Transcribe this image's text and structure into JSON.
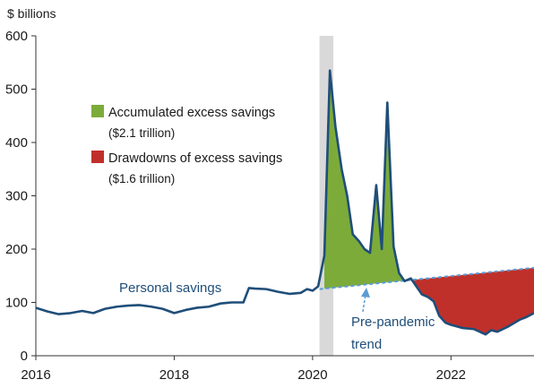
{
  "chart_data": {
    "type": "area",
    "unit_label": "$ billions",
    "ylim": [
      0,
      600
    ],
    "xlim": [
      2016,
      2023.2
    ],
    "y_ticks": [
      "0",
      "100",
      "200",
      "300",
      "400",
      "500",
      "600"
    ],
    "x_ticks": [
      "2016",
      "2018",
      "2020",
      "2022"
    ],
    "colors": {
      "savings_line": "#1f4e79",
      "trend_line": "#5b9bd5",
      "excess": "#7cab3a",
      "drawdown": "#c0302a",
      "recession_shade": "#d9d9d9"
    },
    "shaded_period": [
      2020.1,
      2020.3
    ],
    "legend": [
      {
        "label": "Accumulated excess savings",
        "sub": "($2.1 trillion)",
        "color": "#7cab3a"
      },
      {
        "label": "Drawdowns of excess savings",
        "sub": "($1.6 trillion)",
        "color": "#c0302a"
      }
    ],
    "annotations": {
      "personal_savings": "Personal savings",
      "trend_line1": "Pre-pandemic",
      "trend_line2": "trend"
    },
    "trend": {
      "x": [
        2020.1,
        2023.2
      ],
      "y": [
        125,
        165
      ]
    },
    "series": [
      {
        "name": "Personal savings",
        "x": [
          2016.0,
          2016.17,
          2016.33,
          2016.5,
          2016.67,
          2016.83,
          2017.0,
          2017.17,
          2017.33,
          2017.5,
          2017.67,
          2017.83,
          2018.0,
          2018.17,
          2018.33,
          2018.5,
          2018.67,
          2018.83,
          2019.0,
          2019.08,
          2019.17,
          2019.33,
          2019.5,
          2019.67,
          2019.83,
          2019.92,
          2020.0,
          2020.08,
          2020.17,
          2020.25,
          2020.33,
          2020.42,
          2020.5,
          2020.58,
          2020.67,
          2020.75,
          2020.83,
          2020.92,
          2021.0,
          2021.08,
          2021.17,
          2021.25,
          2021.33,
          2021.42,
          2021.5,
          2021.58,
          2021.67,
          2021.75,
          2021.83,
          2021.92,
          2022.0,
          2022.17,
          2022.33,
          2022.5,
          2022.58,
          2022.67,
          2022.83,
          2023.0,
          2023.08,
          2023.2
        ],
        "y": [
          90,
          83,
          78,
          80,
          84,
          80,
          88,
          92,
          94,
          95,
          92,
          88,
          80,
          86,
          90,
          92,
          98,
          100,
          100,
          127,
          126,
          125,
          120,
          116,
          118,
          125,
          122,
          130,
          188,
          535,
          430,
          350,
          300,
          228,
          215,
          200,
          193,
          320,
          200,
          475,
          205,
          155,
          140,
          145,
          130,
          115,
          110,
          102,
          75,
          62,
          58,
          52,
          50,
          40,
          48,
          45,
          55,
          68,
          72,
          80
        ]
      }
    ]
  }
}
